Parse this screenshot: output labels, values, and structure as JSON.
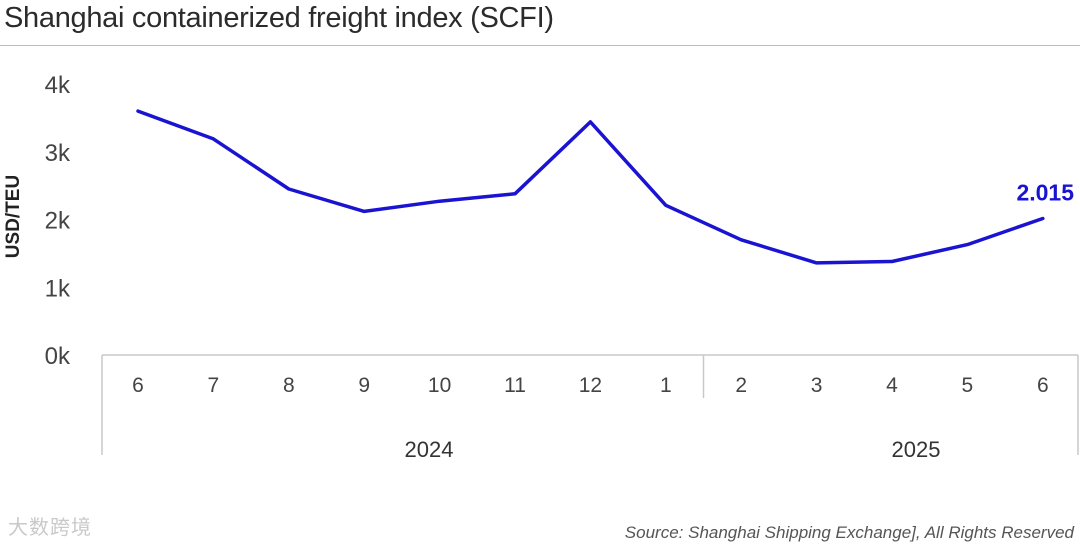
{
  "page": {
    "title": "Shanghai containerized freight index (SCFI)",
    "source": "Source: Shanghai Shipping Exchange], All Rights Reserved",
    "watermark": "大数跨境"
  },
  "chart_data": {
    "type": "line",
    "title": "Shanghai containerized freight index (SCFI)",
    "xlabel": "",
    "ylabel": "USD/TEU",
    "ylim": [
      0,
      4000
    ],
    "yticks": [
      0,
      1000,
      2000,
      3000,
      4000
    ],
    "ytick_labels": [
      "0k",
      "1k",
      "2k",
      "3k",
      "4k"
    ],
    "grid": false,
    "line_color": "#1a14d2",
    "categories": [
      "6",
      "7",
      "8",
      "9",
      "10",
      "11",
      "12",
      "1",
      "2",
      "3",
      "4",
      "5",
      "6"
    ],
    "groups": [
      {
        "label": "2024",
        "count": 8
      },
      {
        "label": "2025",
        "count": 5
      }
    ],
    "series": [
      {
        "name": "SCFI",
        "values": [
          3600,
          3190,
          2450,
          2120,
          2270,
          2380,
          3440,
          2210,
          1700,
          1360,
          1380,
          1630,
          2015
        ]
      }
    ],
    "end_label": "2.015"
  }
}
